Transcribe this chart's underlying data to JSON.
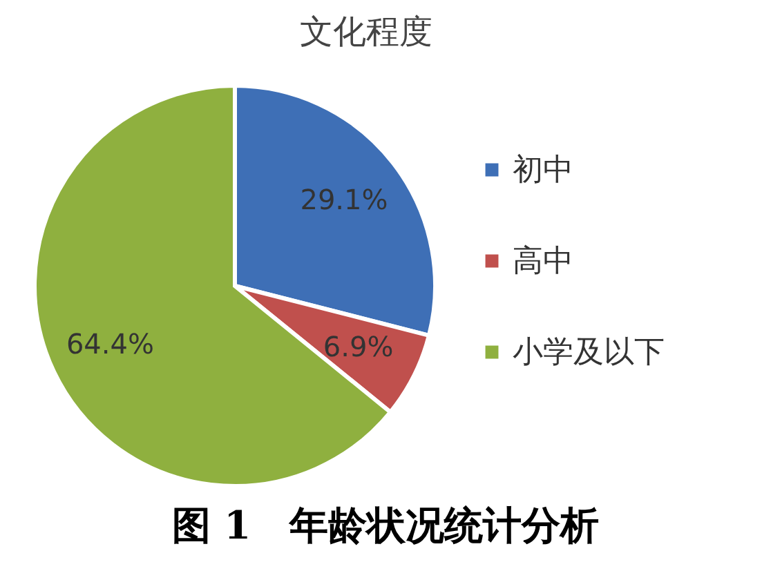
{
  "chart_data": {
    "type": "pie",
    "title": "文化程度",
    "categories": [
      "初中",
      "高中",
      "小学及以下"
    ],
    "values": [
      29.1,
      6.9,
      64.4
    ],
    "colors": [
      "#3e6fb6",
      "#c0504d",
      "#8fb03f"
    ],
    "value_labels": [
      "29.1%",
      "6.9%",
      "64.4%"
    ],
    "legend": "right",
    "annotations": [
      "图 1　年龄状况统计分析"
    ]
  }
}
